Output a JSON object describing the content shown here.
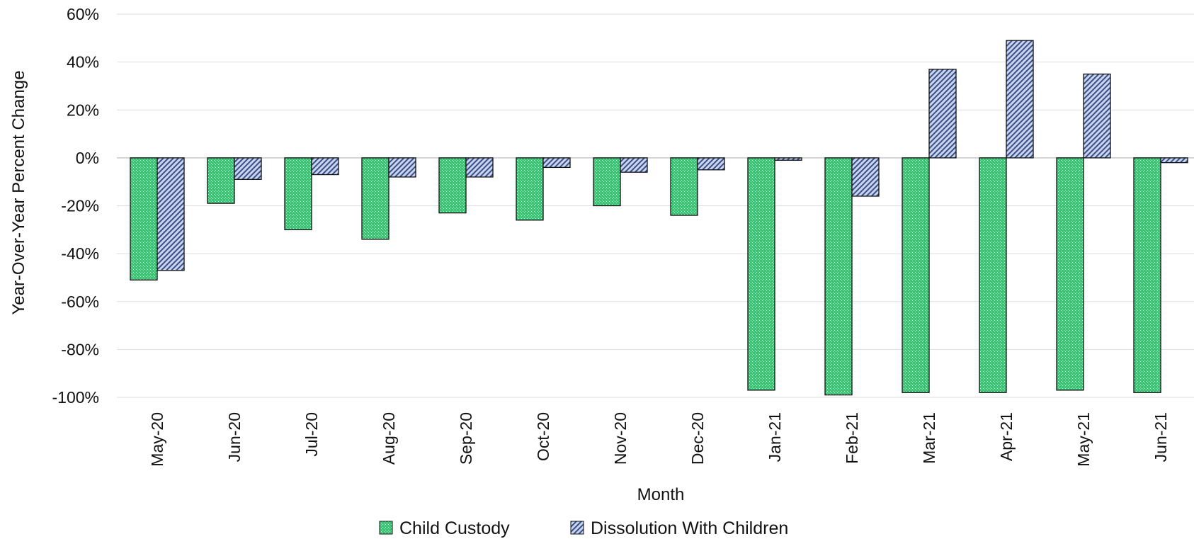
{
  "chart_data": {
    "type": "bar",
    "title": "",
    "xlabel": "Month",
    "ylabel": "Year-Over-Year  Percent Change",
    "categories": [
      "May-20",
      "Jun-20",
      "Jul-20",
      "Aug-20",
      "Sep-20",
      "Oct-20",
      "Nov-20",
      "Dec-20",
      "Jan-21",
      "Feb-21",
      "Mar-21",
      "Apr-21",
      "May-21",
      "Jun-21"
    ],
    "series": [
      {
        "name": "Child Custody",
        "color": "#2ecc71",
        "values": [
          -51,
          -19,
          -30,
          -34,
          -23,
          -26,
          -20,
          -24,
          -97,
          -99,
          -98,
          -98,
          -97,
          -98
        ]
      },
      {
        "name": "Dissolution With Children",
        "color": "#8ea4d6",
        "values": [
          -47,
          -9,
          -7,
          -8,
          -8,
          -4,
          -6,
          -5,
          -1,
          -16,
          37,
          49,
          35,
          -2
        ]
      }
    ],
    "ylim": [
      -100,
      60
    ],
    "yticks": [
      60,
      40,
      20,
      0,
      -20,
      -40,
      -60,
      -80,
      -100
    ],
    "ytick_suffix": "%",
    "grid": true,
    "legend_position": "bottom-center"
  }
}
